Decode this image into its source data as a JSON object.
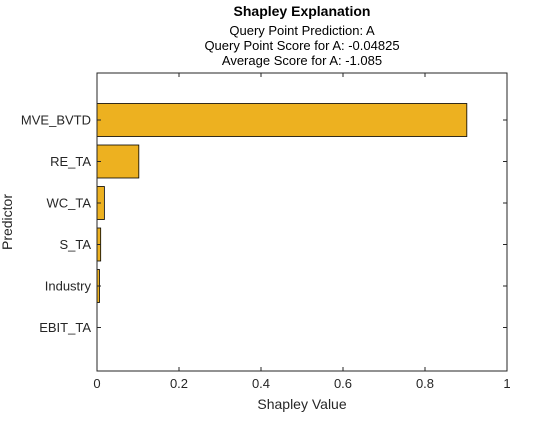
{
  "chart_data": {
    "type": "bar",
    "orientation": "horizontal",
    "title": "Shapley Explanation",
    "subtitle_lines": [
      "Query Point Prediction: A",
      "Query Point Score for A: -0.04825",
      "Average Score for A: -1.085"
    ],
    "xlabel": "Shapley Value",
    "ylabel": "Predictor",
    "categories": [
      "MVE_BVTD",
      "RE_TA",
      "WC_TA",
      "S_TA",
      "Industry",
      "EBIT_TA"
    ],
    "values": [
      0.902,
      0.102,
      0.018,
      0.009,
      0.006,
      0.001
    ],
    "xlim": [
      0,
      1
    ],
    "xticks": [
      0,
      0.2,
      0.4,
      0.6,
      0.8,
      1
    ],
    "xtick_labels": [
      "0",
      "0.2",
      "0.4",
      "0.6",
      "0.8",
      "1"
    ],
    "grid": false,
    "bar_color": "#EDB120",
    "bar_edge_color": "#000000"
  }
}
